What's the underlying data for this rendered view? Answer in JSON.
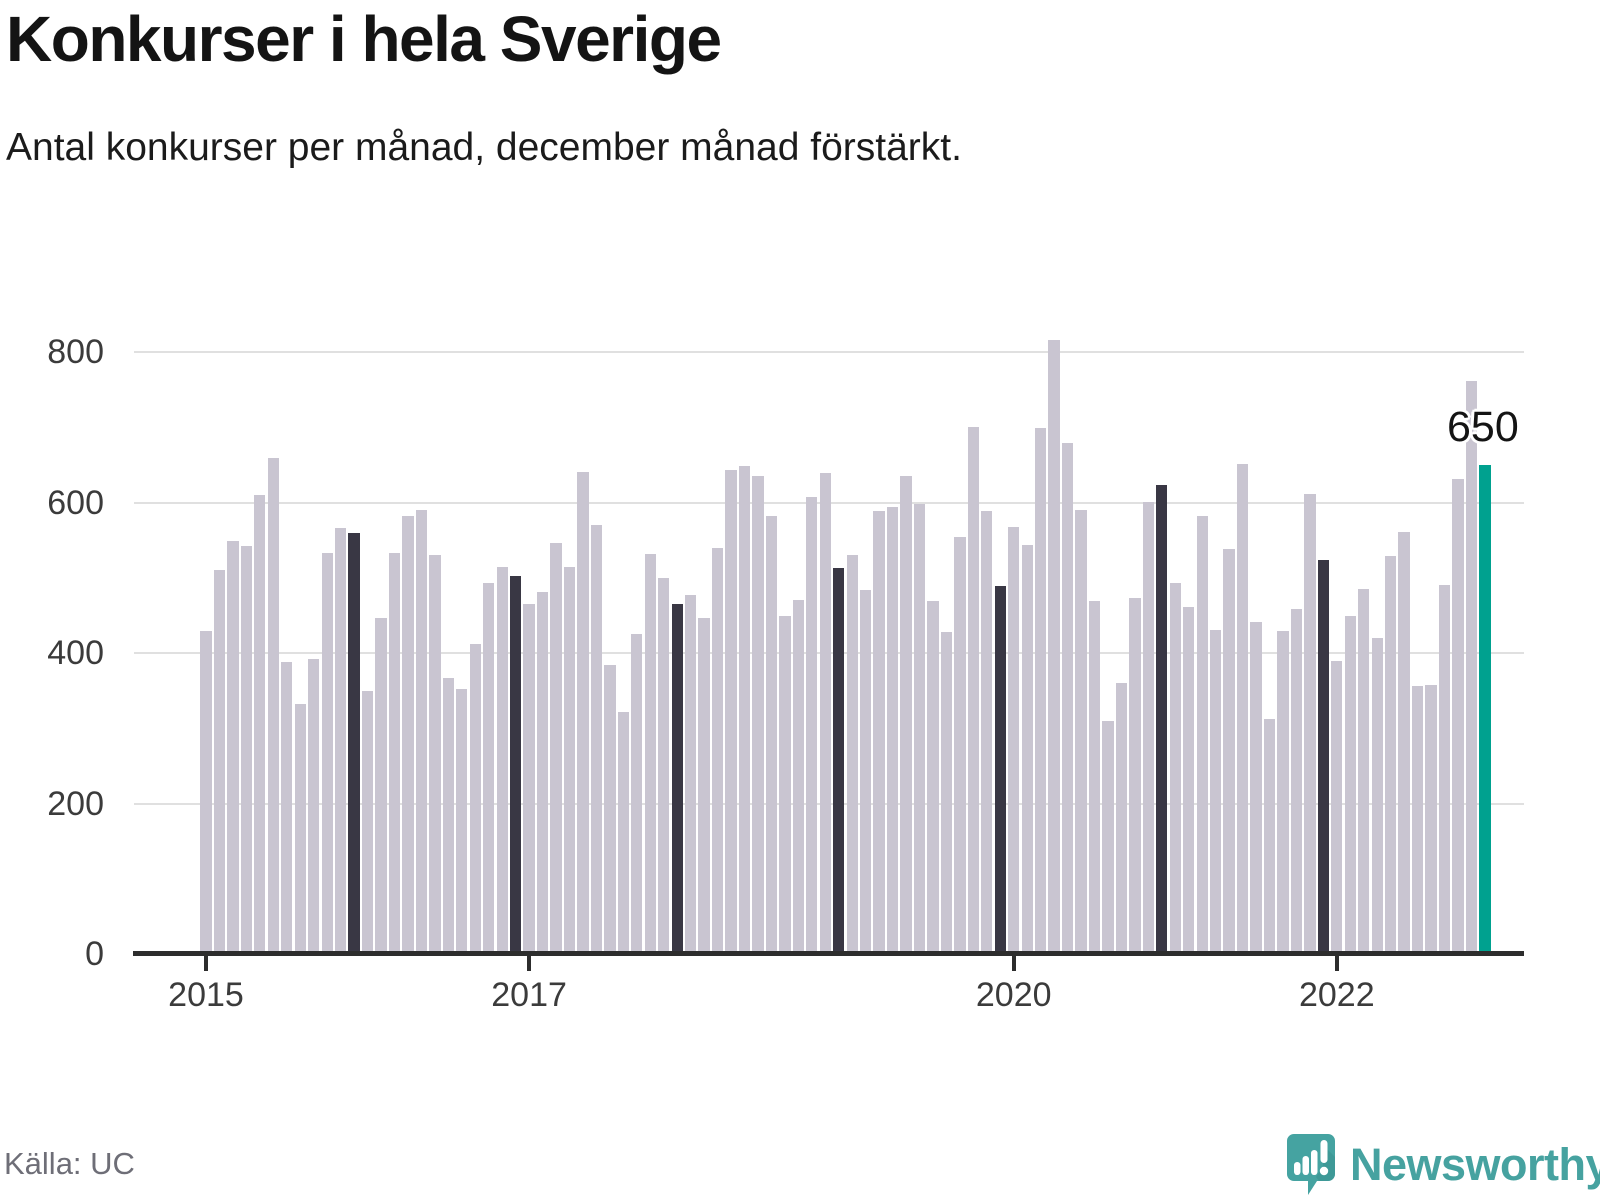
{
  "header": {
    "title": "Konkurser i hela Sverige",
    "subtitle": "Antal konkurser per månad, december månad förstärkt."
  },
  "chart_data": {
    "type": "bar",
    "title": "Konkurser i hela Sverige",
    "ylabel": "Antal konkurser per månad",
    "ylim": [
      0,
      850
    ],
    "grid": true,
    "yticks": [
      0,
      200,
      400,
      600,
      800
    ],
    "xticks": [
      {
        "label": "2015",
        "index": 0
      },
      {
        "label": "2017",
        "index": 24
      },
      {
        "label": "2020",
        "index": 60
      },
      {
        "label": "2022",
        "index": 84
      }
    ],
    "categories": [
      "2015-01",
      "2015-02",
      "2015-03",
      "2015-04",
      "2015-05",
      "2015-06",
      "2015-07",
      "2015-08",
      "2015-09",
      "2015-10",
      "2015-11",
      "2015-12",
      "2016-01",
      "2016-02",
      "2016-03",
      "2016-04",
      "2016-05",
      "2016-06",
      "2016-07",
      "2016-08",
      "2016-09",
      "2016-10",
      "2016-11",
      "2016-12",
      "2017-01",
      "2017-02",
      "2017-03",
      "2017-04",
      "2017-05",
      "2017-06",
      "2017-07",
      "2017-08",
      "2017-09",
      "2017-10",
      "2017-11",
      "2017-12",
      "2018-01",
      "2018-02",
      "2018-03",
      "2018-04",
      "2018-05",
      "2018-06",
      "2018-07",
      "2018-08",
      "2018-09",
      "2018-10",
      "2018-11",
      "2018-12",
      "2019-01",
      "2019-02",
      "2019-03",
      "2019-04",
      "2019-05",
      "2019-06",
      "2019-07",
      "2019-08",
      "2019-09",
      "2019-10",
      "2019-11",
      "2019-12",
      "2020-01",
      "2020-02",
      "2020-03",
      "2020-04",
      "2020-05",
      "2020-06",
      "2020-07",
      "2020-08",
      "2020-09",
      "2020-10",
      "2020-11",
      "2020-12",
      "2021-01",
      "2021-02",
      "2021-03",
      "2021-04",
      "2021-05",
      "2021-06",
      "2021-07",
      "2021-08",
      "2021-09",
      "2021-10",
      "2021-11",
      "2021-12",
      "2022-01",
      "2022-02",
      "2022-03",
      "2022-04",
      "2022-05",
      "2022-06",
      "2022-07",
      "2022-08",
      "2022-09",
      "2022-10",
      "2022-11",
      "2022-12"
    ],
    "series": [
      {
        "name": "Antal konkurser",
        "values": [
          430,
          510,
          549,
          542,
          610,
          660,
          388,
          333,
          392,
          533,
          567,
          560,
          350,
          447,
          533,
          582,
          591,
          530,
          367,
          353,
          412,
          494,
          515,
          503,
          465,
          481,
          547,
          514,
          641,
          570,
          384,
          322,
          426,
          532,
          500,
          465,
          478,
          447,
          540,
          644,
          649,
          636,
          582,
          449,
          471,
          608,
          640,
          513,
          531,
          484,
          589,
          594,
          635,
          599,
          469,
          428,
          555,
          701,
          589,
          489,
          568,
          544,
          699,
          816,
          679,
          591,
          470,
          310,
          361,
          474,
          601,
          624,
          493,
          461,
          583,
          431,
          539,
          651,
          441,
          312,
          430,
          459,
          612,
          524,
          390,
          450,
          485,
          420,
          529,
          561,
          356,
          358,
          491,
          632,
          762,
          650
        ]
      }
    ],
    "highlight_december": true,
    "annotation": {
      "label": "650",
      "index": 95
    },
    "legend": "none",
    "colors": {
      "month": "#c9c5d1",
      "december": "#393744",
      "latest": "#00a18f",
      "gridline": "#e0e0e0",
      "axis": "#2d2d2d"
    }
  },
  "footer": {
    "source": "Källa: UC",
    "brand": "Newsworthy",
    "brand_color": "#46a2a0"
  }
}
